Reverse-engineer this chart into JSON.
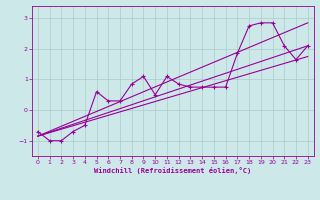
{
  "xlabel": "Windchill (Refroidissement éolien,°C)",
  "background_color": "#cce8e8",
  "grid_color": "#aacccc",
  "line_color": "#990099",
  "xlim": [
    -0.5,
    23.5
  ],
  "ylim": [
    -1.5,
    3.4
  ],
  "yticks": [
    -1,
    0,
    1,
    2,
    3
  ],
  "xticks": [
    0,
    1,
    2,
    3,
    4,
    5,
    6,
    7,
    8,
    9,
    10,
    11,
    12,
    13,
    14,
    15,
    16,
    17,
    18,
    19,
    20,
    21,
    22,
    23
  ],
  "series": [
    [
      0,
      -0.7
    ],
    [
      1,
      -1.0
    ],
    [
      2,
      -1.0
    ],
    [
      3,
      -0.7
    ],
    [
      4,
      -0.5
    ],
    [
      5,
      0.6
    ],
    [
      6,
      0.3
    ],
    [
      7,
      0.3
    ],
    [
      8,
      0.85
    ],
    [
      9,
      1.1
    ],
    [
      10,
      0.5
    ],
    [
      11,
      1.1
    ],
    [
      12,
      0.85
    ],
    [
      13,
      0.75
    ],
    [
      14,
      0.75
    ],
    [
      15,
      0.75
    ],
    [
      16,
      0.75
    ],
    [
      17,
      1.85
    ],
    [
      18,
      2.75
    ],
    [
      19,
      2.85
    ],
    [
      20,
      2.85
    ],
    [
      21,
      2.1
    ],
    [
      22,
      1.65
    ],
    [
      23,
      2.1
    ]
  ],
  "line1": [
    [
      0,
      -0.85
    ],
    [
      23,
      2.85
    ]
  ],
  "line2": [
    [
      0,
      -0.85
    ],
    [
      23,
      1.75
    ]
  ],
  "line3": [
    [
      0,
      -0.85
    ],
    [
      23,
      2.1
    ]
  ]
}
